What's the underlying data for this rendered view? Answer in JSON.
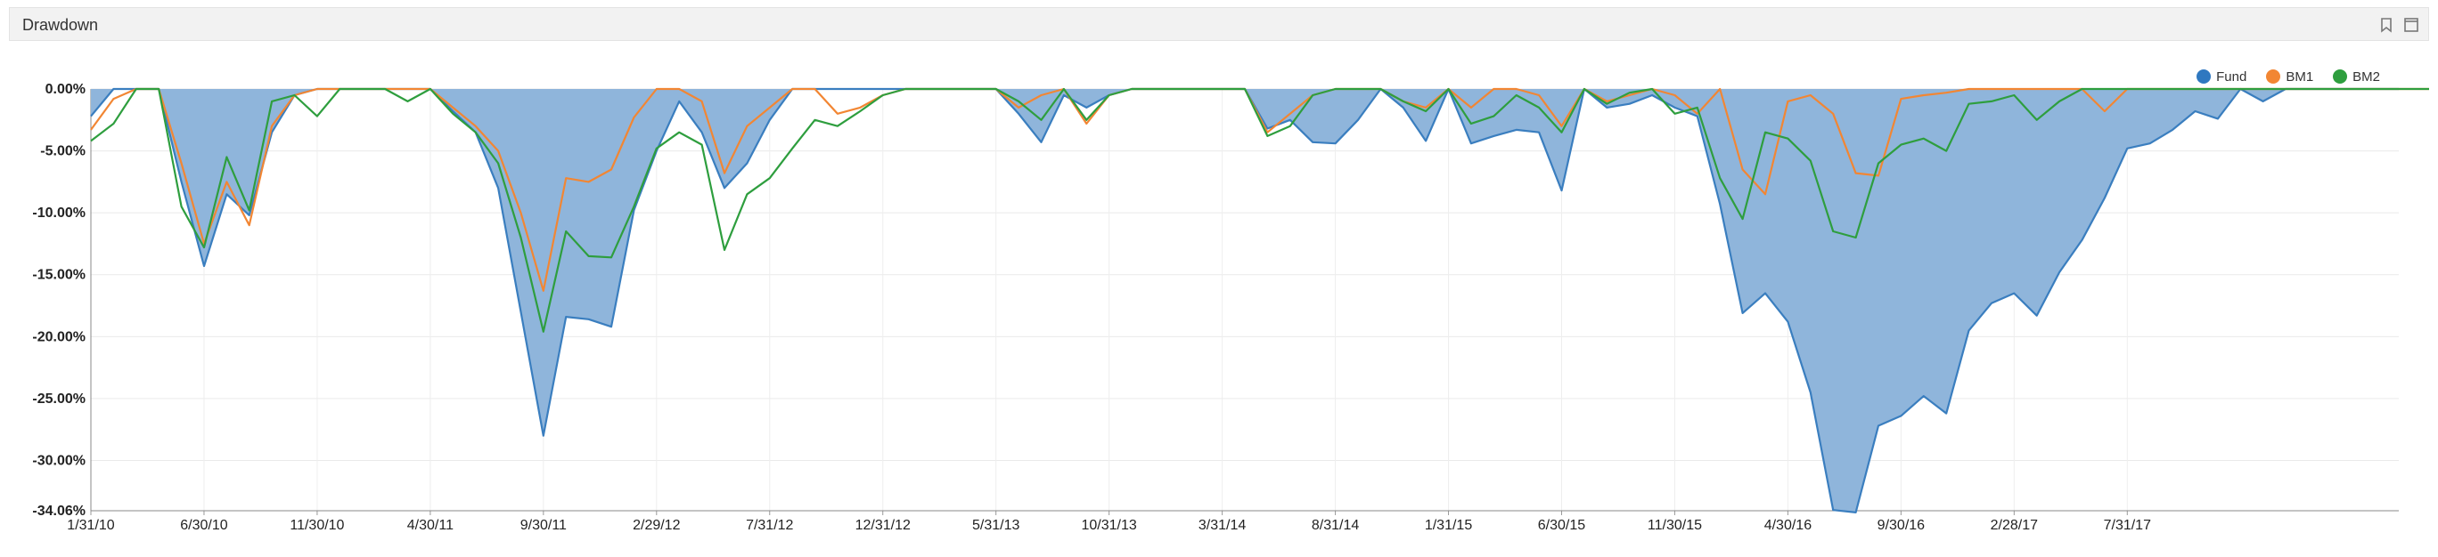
{
  "panel": {
    "title": "Drawdown"
  },
  "header_icons": [
    "bookmark-icon",
    "maximize-icon"
  ],
  "chart_data": {
    "type": "area",
    "title": "",
    "xlabel": "",
    "ylabel": "",
    "ylim": [
      -34.06,
      0
    ],
    "grid": true,
    "legend_position": "top-right",
    "y_ticks": [
      "0.00%",
      "-5.00%",
      "-10.00%",
      "-15.00%",
      "-20.00%",
      "-25.00%",
      "-30.00%",
      "-34.06%"
    ],
    "y_tick_values": [
      0,
      -5,
      -10,
      -15,
      -20,
      -25,
      -30,
      -34.06
    ],
    "x_ticks": [
      "1/31/10",
      "6/30/10",
      "11/30/10",
      "4/30/11",
      "9/30/11",
      "2/29/12",
      "7/31/12",
      "12/31/12",
      "5/31/13",
      "10/31/13",
      "3/31/14",
      "8/31/14",
      "1/31/15",
      "6/30/15",
      "11/30/15",
      "4/30/16",
      "9/30/16",
      "2/28/17",
      "7/31/17"
    ],
    "x_tick_index": [
      0,
      5,
      10,
      15,
      20,
      25,
      30,
      35,
      40,
      45,
      50,
      55,
      60,
      65,
      70,
      75,
      80,
      85,
      90
    ],
    "x_start": "1/31/10",
    "x_end": "1/31/18",
    "series": [
      {
        "name": "Fund",
        "color": "#3a7ebf",
        "fill": "#8fb5db",
        "values": [
          -2.2,
          0,
          0,
          0,
          -7.5,
          -14.3,
          -8.5,
          -10.2,
          -3.5,
          -0.5,
          0,
          0,
          0,
          0,
          0,
          0,
          -1.8,
          -3.5,
          -8,
          -18,
          -28,
          -18.4,
          -18.6,
          -19.2,
          -9.8,
          -5,
          -1,
          -3.5,
          -8,
          -6,
          -2.5,
          0,
          0,
          0,
          0,
          0,
          0,
          0,
          0,
          0,
          0,
          -2,
          -4.3,
          -0.5,
          -1.5,
          -0.5,
          0,
          0,
          0,
          0,
          0,
          0,
          -3.2,
          -2.5,
          -4.3,
          -4.4,
          -2.5,
          0,
          -1.5,
          -4.2,
          0,
          -4.4,
          -3.8,
          -3.3,
          -3.5,
          -8.2,
          0,
          -1.5,
          -1.2,
          -0.5,
          -1.5,
          -2.2,
          -9.3,
          -18.1,
          -16.5,
          -18.8,
          -24.5,
          -34,
          -34.2,
          -27.2,
          -26.4,
          -24.8,
          -26.2,
          -19.5,
          -17.3,
          -16.5,
          -18.3,
          -14.8,
          -12.2,
          -8.8,
          -4.8,
          -4.4,
          -3.3,
          -1.8,
          -2.4,
          0,
          -1,
          0,
          0,
          0,
          0,
          0,
          0
        ]
      },
      {
        "name": "BM1",
        "color": "#f28633",
        "values": [
          -3.3,
          -0.8,
          0,
          0,
          -6,
          -12.5,
          -7.5,
          -11,
          -3,
          -0.5,
          0,
          0,
          0,
          0,
          0,
          0,
          -1.5,
          -3,
          -5,
          -10,
          -16.3,
          -7.2,
          -7.5,
          -6.5,
          -2.3,
          0,
          0,
          -1,
          -6.8,
          -3,
          -1.5,
          0,
          0,
          -2,
          -1.5,
          -0.5,
          0,
          0,
          0,
          0,
          0,
          -1.5,
          -0.5,
          0,
          -2.8,
          -0.5,
          0,
          0,
          0,
          0,
          0,
          0,
          -3.5,
          -2,
          -0.5,
          0,
          0,
          0,
          -1,
          -1.5,
          0,
          -1.5,
          0,
          0,
          -0.5,
          -3,
          0,
          -1,
          -0.5,
          0,
          -0.5,
          -2,
          0,
          -6.5,
          -8.5,
          -1,
          -0.5,
          -2,
          -6.8,
          -7,
          -0.8,
          -0.5,
          -0.3,
          0,
          0,
          0,
          0,
          0,
          0,
          -1.8,
          0,
          0,
          0,
          0,
          0,
          0,
          0,
          0,
          0,
          0,
          0,
          0,
          0,
          0,
          0,
          0,
          0,
          0
        ]
      },
      {
        "name": "BM2",
        "color": "#2e9e3e",
        "values": [
          -4.2,
          -2.8,
          0,
          0,
          -9.5,
          -12.8,
          -5.5,
          -9.8,
          -1,
          -0.5,
          -2.2,
          0,
          0,
          0,
          -1,
          0,
          -2,
          -3.5,
          -6,
          -12,
          -19.6,
          -11.5,
          -13.5,
          -13.6,
          -9.5,
          -4.8,
          -3.5,
          -4.5,
          -13,
          -8.5,
          -7.2,
          -4.8,
          -2.5,
          -3,
          -1.8,
          -0.5,
          0,
          0,
          0,
          0,
          0,
          -1,
          -2.5,
          0,
          -2.5,
          -0.5,
          0,
          0,
          0,
          0,
          0,
          0,
          -3.8,
          -3,
          -0.5,
          0,
          0,
          0,
          -1,
          -1.8,
          0,
          -2.8,
          -2.2,
          -0.5,
          -1.5,
          -3.5,
          0,
          -1.2,
          -0.3,
          0,
          -2,
          -1.5,
          -7.2,
          -10.5,
          -3.5,
          -4,
          -5.8,
          -11.5,
          -12,
          -6,
          -4.5,
          -4,
          -5,
          -1.2,
          -1,
          -0.5,
          -2.5,
          -1,
          0,
          0,
          0,
          0,
          0,
          0,
          0,
          0,
          0,
          0,
          0,
          0,
          0,
          0,
          0,
          0,
          0,
          0
        ]
      }
    ]
  }
}
